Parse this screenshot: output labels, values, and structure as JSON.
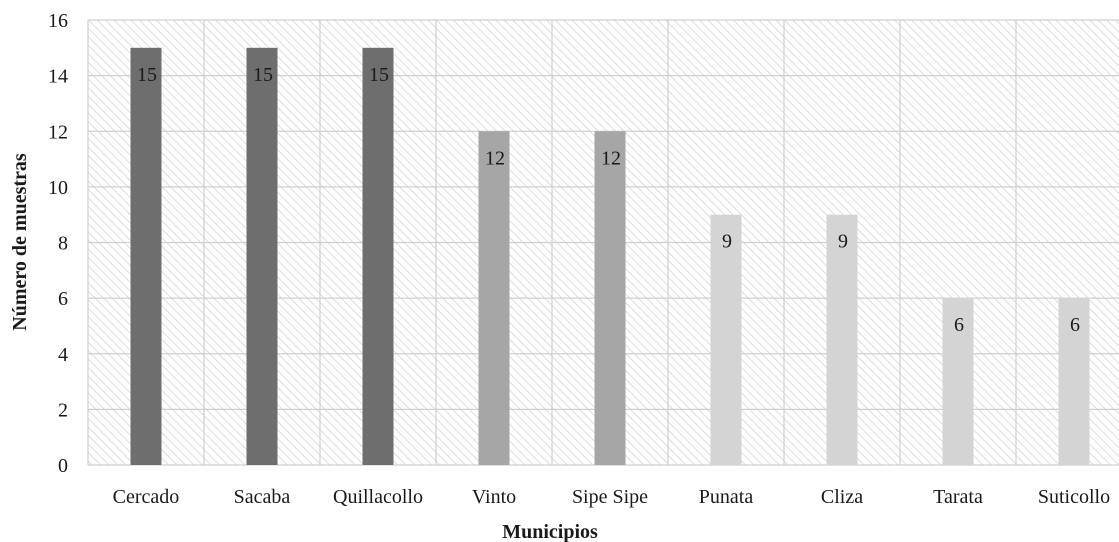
{
  "chart_data": {
    "type": "bar",
    "title": "",
    "xlabel": "Municipios",
    "ylabel": "Número de muestras",
    "ylim": [
      0,
      16
    ],
    "yticks": [
      0,
      2,
      4,
      6,
      8,
      10,
      12,
      14,
      16
    ],
    "grid": true,
    "legend": "none",
    "categories": [
      "Cercado",
      "Sacaba",
      "Quillacollo",
      "Vinto",
      "Sipe Sipe",
      "Punata",
      "Cliza",
      "Tarata",
      "Suticollo"
    ],
    "values": [
      15,
      15,
      15,
      12,
      12,
      9,
      9,
      6,
      6
    ],
    "data_labels": [
      "15",
      "15",
      "15",
      "12",
      "12",
      "9",
      "9",
      "6",
      "6"
    ],
    "bar_colors": [
      "#6e6e6e",
      "#6e6e6e",
      "#6e6e6e",
      "#a6a6a6",
      "#a6a6a6",
      "#d4d4d4",
      "#d4d4d4",
      "#d4d4d4",
      "#d4d4d4"
    ]
  }
}
